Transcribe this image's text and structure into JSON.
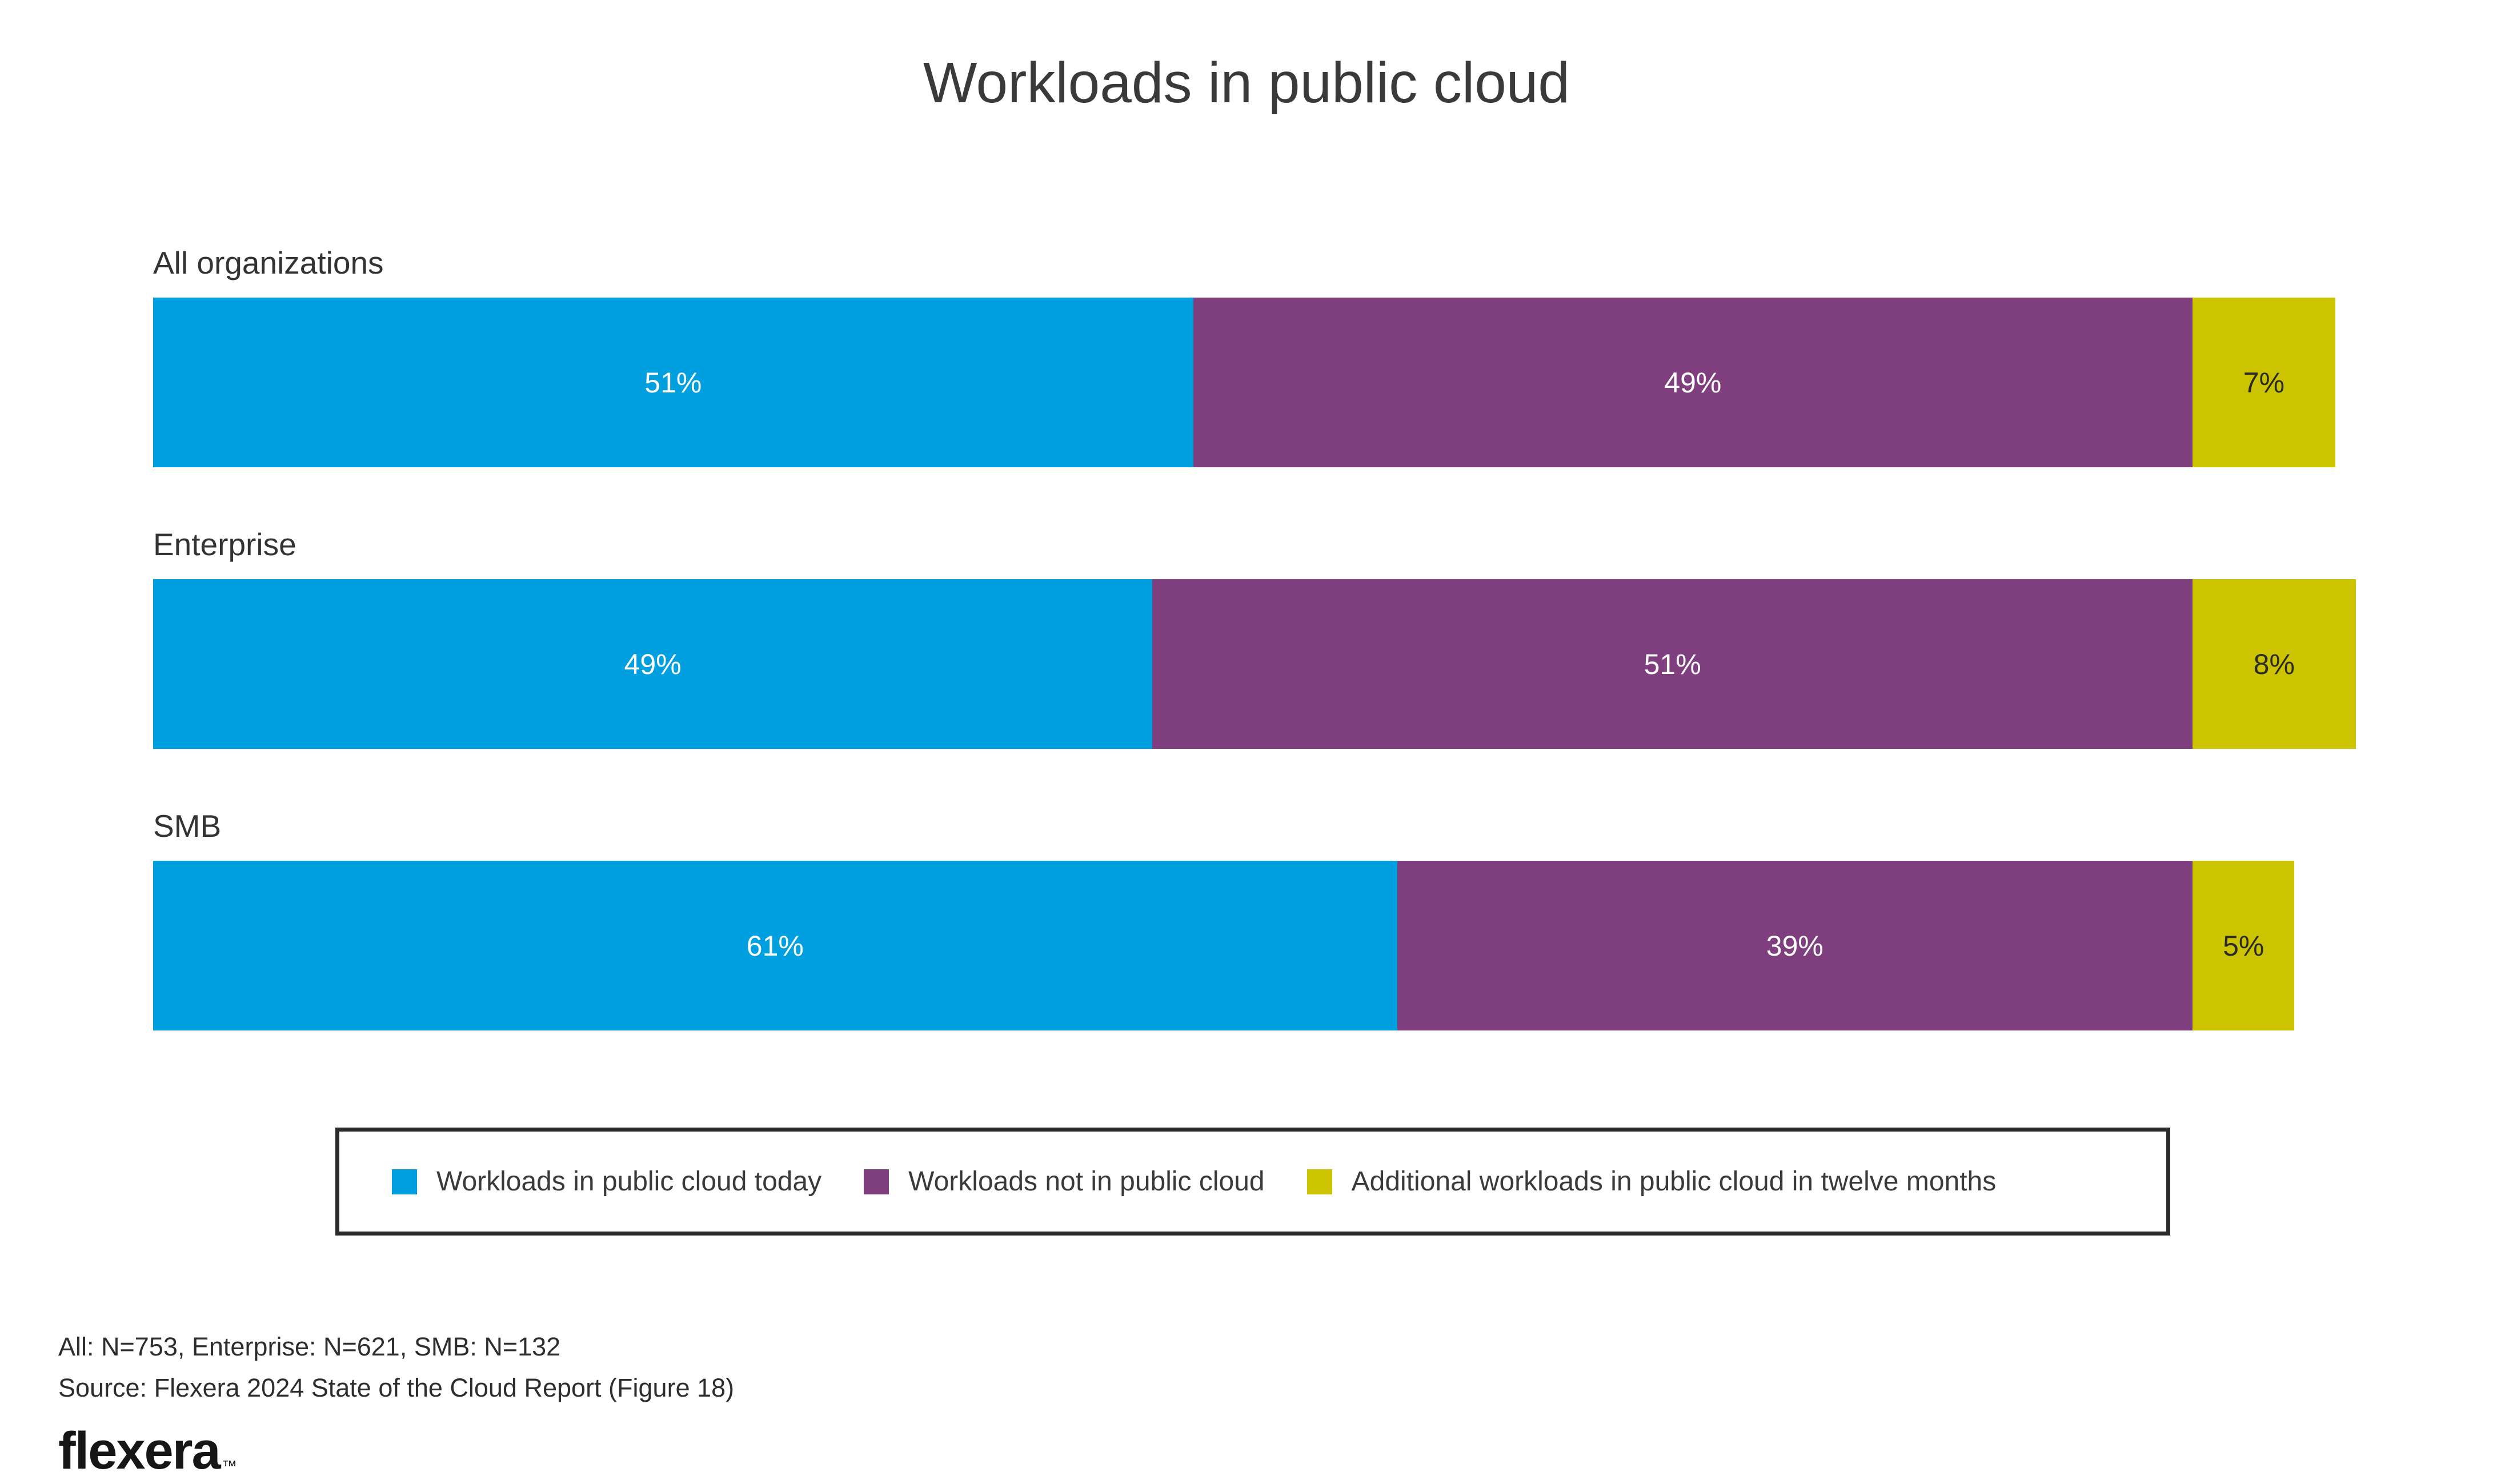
{
  "title": "Workloads in public cloud",
  "colors": {
    "blue": "#009fdf",
    "purple": "#7f3e7d",
    "yellow": "#ccc400"
  },
  "chart_data": {
    "type": "bar",
    "subtype": "horizontal-stacked",
    "title": "Workloads in public cloud",
    "unit": "percent",
    "categories": [
      "All organizations",
      "Enterprise",
      "SMB"
    ],
    "series": [
      {
        "name": "Workloads in public cloud today",
        "color_key": "blue",
        "color": "#009fdf",
        "values": [
          51,
          49,
          61
        ]
      },
      {
        "name": "Workloads not in public cloud",
        "color_key": "purple",
        "color": "#7f3e7d",
        "values": [
          49,
          51,
          39
        ]
      },
      {
        "name": "Additional workloads in public cloud in twelve months",
        "color_key": "yellow",
        "color": "#ccc400",
        "values": [
          7,
          8,
          5
        ]
      }
    ],
    "value_label_format": "{v}%",
    "value_label_colors": {
      "blue": "#ffffff",
      "purple": "#ffffff",
      "yellow": "#2b2b2b"
    },
    "axis": "none",
    "grid": false,
    "legend_position": "bottom"
  },
  "legend": {
    "items": [
      {
        "label": "Workloads in public cloud today",
        "color_key": "blue"
      },
      {
        "label": "Workloads not in public cloud",
        "color_key": "purple"
      },
      {
        "label": "Additional workloads in public cloud in twelve months",
        "color_key": "yellow"
      }
    ]
  },
  "footer": {
    "sample_note": "All: N=753, Enterprise: N=621, SMB: N=132",
    "source": "Source: Flexera 2024 State of the Cloud Report (Figure 18)",
    "logo_text": "flexera",
    "logo_tm": "™"
  }
}
